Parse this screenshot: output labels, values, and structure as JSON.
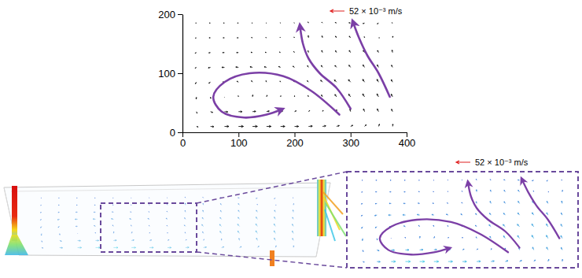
{
  "chart_data": {
    "type": "quiver",
    "xlim": [
      0,
      400
    ],
    "ylim": [
      0,
      200
    ],
    "xticks": [
      0,
      100,
      200,
      300,
      400
    ],
    "yticks": [
      0,
      100,
      200
    ],
    "color": "#000000",
    "x": [
      25,
      50,
      75,
      100,
      125,
      150,
      175,
      200,
      225,
      250,
      275,
      300,
      325,
      350,
      375
    ],
    "y": [
      10,
      35,
      60,
      85,
      110,
      135,
      160,
      185
    ],
    "u": [
      [
        6,
        12,
        16,
        18,
        18,
        17,
        16,
        15,
        14,
        12,
        10,
        8,
        6,
        3,
        1
      ],
      [
        2,
        8,
        12,
        13,
        12,
        10,
        8,
        6,
        4,
        2,
        0,
        -2,
        -4,
        -5,
        -4
      ],
      [
        -1,
        1,
        0,
        -1,
        1,
        2,
        1,
        0,
        -2,
        -4,
        -6,
        -7,
        -7,
        -6,
        -5
      ],
      [
        -4,
        -6,
        -7,
        -6,
        -4,
        -2,
        -2,
        -3,
        -5,
        -7,
        -8,
        -8,
        -7,
        -6,
        -5
      ],
      [
        -5,
        -8,
        -10,
        -10,
        -9,
        -8,
        -7,
        -6,
        -4,
        -5,
        -6,
        -6,
        -6,
        -5,
        -4
      ],
      [
        -5,
        -6,
        -7,
        -7,
        -6,
        -5,
        -4,
        -3,
        -2,
        -3,
        -4,
        -5,
        -5,
        -4,
        -2
      ],
      [
        -4,
        -5,
        -5,
        -5,
        -4,
        -3,
        -2,
        -2,
        -1,
        -2,
        -4,
        -5,
        -1,
        3,
        1
      ],
      [
        -3,
        -4,
        -4,
        -4,
        -3,
        -2,
        -2,
        -2,
        -2,
        -3,
        -5,
        -6,
        -6,
        -5,
        -3
      ]
    ],
    "v": [
      [
        -2,
        -1,
        0,
        0,
        0,
        0,
        0,
        0,
        1,
        2,
        3,
        4,
        6,
        8,
        8
      ],
      [
        -6,
        -3,
        -1,
        0,
        1,
        2,
        2,
        3,
        4,
        5,
        7,
        9,
        10,
        10,
        9
      ],
      [
        -8,
        -6,
        -1,
        4,
        7,
        6,
        4,
        4,
        5,
        7,
        9,
        10,
        11,
        11,
        10
      ],
      [
        -6,
        -4,
        0,
        3,
        5,
        5,
        4,
        4,
        5,
        7,
        8,
        9,
        10,
        10,
        9
      ],
      [
        -3,
        -2,
        0,
        1,
        2,
        2,
        3,
        4,
        6,
        7,
        7,
        8,
        9,
        9,
        8
      ],
      [
        -2,
        -1,
        0,
        0,
        1,
        1,
        2,
        4,
        7,
        8,
        7,
        8,
        8,
        8,
        9
      ],
      [
        -1,
        0,
        0,
        0,
        1,
        1,
        2,
        3,
        8,
        7,
        6,
        6,
        4,
        0,
        6
      ],
      [
        0,
        0,
        0,
        0,
        0,
        0,
        1,
        1,
        4,
        3,
        2,
        1,
        -2,
        -3,
        1
      ]
    ],
    "reference": {
      "value": 52,
      "label": "52 × 10⁻³ m/s"
    },
    "streamlines": [
      {
        "x": [
          280,
          230,
          180,
          120,
          75,
          55,
          70,
          110,
          150,
          175
        ],
        "y": [
          30,
          70,
          95,
          100,
          85,
          60,
          35,
          25,
          30,
          38
        ]
      },
      {
        "x": [
          300,
          275,
          245,
          225,
          215,
          210
        ],
        "y": [
          40,
          75,
          100,
          125,
          150,
          178
        ]
      },
      {
        "x": [
          370,
          350,
          330,
          315,
          305
        ],
        "y": [
          60,
          100,
          130,
          160,
          185
        ]
      }
    ]
  },
  "simulation": {
    "reference": {
      "value": 52,
      "label": "52 × 10⁻³ m/s"
    }
  }
}
